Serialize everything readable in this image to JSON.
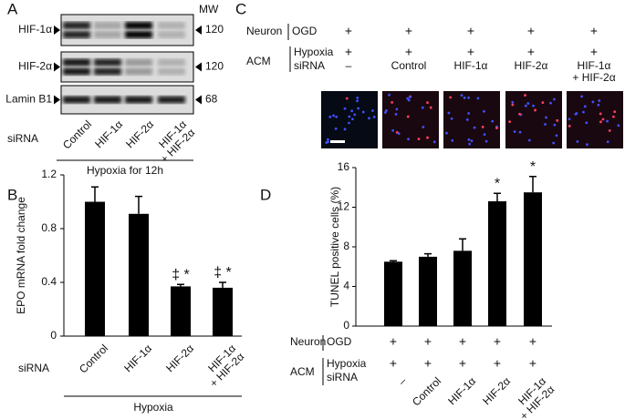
{
  "panel_a": {
    "label": "A",
    "mw_header": "MW",
    "rows": [
      {
        "name": "HIF-1α",
        "mw": 120
      },
      {
        "name": "HIF-2α",
        "mw": 120
      },
      {
        "name": "Lamin B1",
        "mw": 68
      }
    ],
    "sirna_label": "siRNA",
    "lanes": [
      "Control",
      "HIF-1α",
      "HIF-2α",
      "HIF-1α\n+ HIF-2α"
    ],
    "condition": "Hypoxia for 12h"
  },
  "panel_c": {
    "label": "C",
    "neuron_label": "Neuron",
    "ogd_label": "OGD",
    "acm_label": "ACM",
    "hypoxia_label": "Hypoxia",
    "sirna_label": "siRNA",
    "ogd": [
      "+",
      "+",
      "+",
      "+",
      "+"
    ],
    "hypoxia": [
      "+",
      "+",
      "+",
      "+",
      "+"
    ],
    "sirna": [
      "–",
      "Control",
      "HIF-1α",
      "HIF-2α",
      "HIF-1α\n+ HIF-2α"
    ]
  },
  "chart_data": [
    {
      "type": "bar",
      "panel_label": "B",
      "y_label": "EPO mRNA fold change",
      "categories": [
        "Control",
        "HIF-1α",
        "HIF-2α",
        "HIF-1α\n+ HIF-2α"
      ],
      "values": [
        1.0,
        0.91,
        0.37,
        0.36
      ],
      "errors": [
        0.11,
        0.13,
        0.015,
        0.04
      ],
      "markers": [
        null,
        null,
        "‡ *",
        "‡ *"
      ],
      "x_label": "siRNA",
      "group_label": "Hypoxia",
      "color": "#000000",
      "ylim": [
        0,
        1.2
      ],
      "yticks": [
        0,
        0.4,
        0.8,
        1.2
      ]
    },
    {
      "type": "bar",
      "panel_label": "D",
      "y_label": "TUNEL positive cells (%)",
      "neuron_label": "Neuron",
      "ogd_label": "OGD",
      "acm_label": "ACM",
      "hypoxia_label": "Hypoxia",
      "sirna_label": "siRNA",
      "ogd": [
        "+",
        "+",
        "+",
        "+",
        "+"
      ],
      "hypoxia": [
        "+",
        "+",
        "+",
        "+",
        "+"
      ],
      "categories": [
        "–",
        "Control",
        "HIF-1α",
        "HIF-2α",
        "HIF-1α\n+ HIF-2α"
      ],
      "values": [
        6.5,
        7.0,
        7.6,
        12.6,
        13.5
      ],
      "errors": [
        0.1,
        0.3,
        1.2,
        0.8,
        1.6
      ],
      "markers": [
        null,
        null,
        null,
        "*",
        "*"
      ],
      "color": "#000000",
      "ylim": [
        0,
        16
      ],
      "yticks": [
        0,
        4,
        8,
        12,
        16
      ]
    }
  ]
}
